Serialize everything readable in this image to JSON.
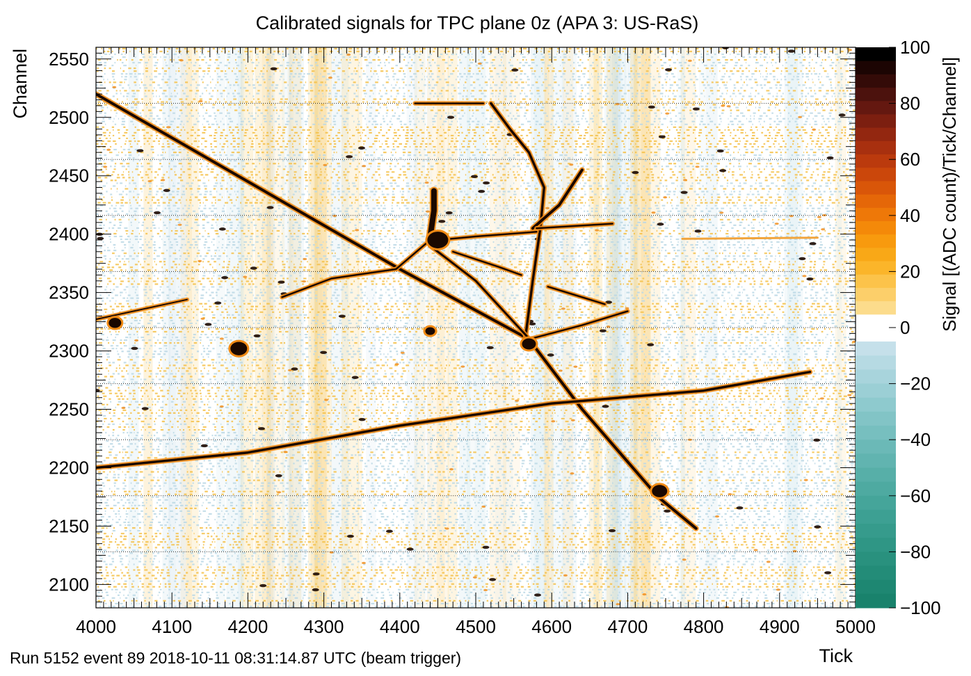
{
  "chart_data": {
    "type": "heatmap",
    "title": "Calibrated signals for TPC plane 0z (APA 3: US-RaS)",
    "xlabel": "Tick",
    "ylabel": "Channel",
    "xlim": [
      4000,
      5000
    ],
    "ylim": [
      2080,
      2560
    ],
    "xticks": [
      4000,
      4100,
      4200,
      4300,
      4400,
      4500,
      4600,
      4700,
      4800,
      4900,
      5000
    ],
    "yticks": [
      2100,
      2150,
      2200,
      2250,
      2300,
      2350,
      2400,
      2450,
      2500,
      2550
    ],
    "colorbar": {
      "label": "Signal [(ADC count)/Tick/Channel]",
      "range": [
        -100,
        100
      ],
      "ticks": [
        -100,
        -80,
        -60,
        -40,
        -20,
        0,
        20,
        40,
        60,
        80,
        100
      ]
    },
    "dotted_channel_lines": [
      2512,
      2464,
      2416,
      2368,
      2320,
      2272,
      2224,
      2176,
      2128
    ],
    "tracks": [
      {
        "points": [
          [
            4000,
            2520
          ],
          [
            4400,
            2370
          ],
          [
            4570,
            2310
          ],
          [
            4640,
            2250
          ],
          [
            4740,
            2175
          ],
          [
            4790,
            2148
          ]
        ],
        "width": 4
      },
      {
        "points": [
          [
            4000,
            2200
          ],
          [
            4200,
            2213
          ],
          [
            4400,
            2236
          ],
          [
            4600,
            2255
          ],
          [
            4800,
            2266
          ],
          [
            4940,
            2282
          ]
        ],
        "width": 3.5
      },
      {
        "points": [
          [
            4565,
            2310
          ],
          [
            4575,
            2360
          ],
          [
            4585,
            2405
          ],
          [
            4590,
            2440
          ],
          [
            4570,
            2470
          ],
          [
            4545,
            2490
          ],
          [
            4520,
            2512
          ]
        ],
        "width": 3.5
      },
      {
        "points": [
          [
            4575,
            2405
          ],
          [
            4610,
            2425
          ],
          [
            4640,
            2455
          ]
        ],
        "width": 4
      },
      {
        "points": [
          [
            4580,
            2405
          ],
          [
            4680,
            2409
          ]
        ],
        "width": 2.5
      },
      {
        "points": [
          [
            4450,
            2395
          ],
          [
            4500,
            2398
          ],
          [
            4580,
            2402
          ]
        ],
        "width": 2.5
      },
      {
        "points": [
          [
            4440,
            2390
          ],
          [
            4500,
            2360
          ],
          [
            4568,
            2312
          ]
        ],
        "width": 3
      },
      {
        "points": [
          [
            4440,
            2395
          ],
          [
            4395,
            2370
          ],
          [
            4310,
            2362
          ],
          [
            4245,
            2346
          ]
        ],
        "width": 2.5
      },
      {
        "points": [
          [
            4440,
            2398
          ],
          [
            4445,
            2420
          ],
          [
            4445,
            2437
          ]
        ],
        "width": 8
      },
      {
        "points": [
          [
            4470,
            2385
          ],
          [
            4530,
            2372
          ],
          [
            4560,
            2365
          ]
        ],
        "width": 2.5
      },
      {
        "points": [
          [
            4570,
            2310
          ],
          [
            4640,
            2322
          ],
          [
            4700,
            2334
          ]
        ],
        "width": 2.5
      },
      {
        "points": [
          [
            4595,
            2355
          ],
          [
            4630,
            2348
          ],
          [
            4670,
            2340
          ]
        ],
        "width": 2.5
      },
      {
        "points": [
          [
            4000,
            2327
          ],
          [
            4120,
            2344
          ]
        ],
        "width": 2
      },
      {
        "points": [
          [
            4420,
            2512
          ],
          [
            4510,
            2512
          ]
        ],
        "width": 2.5
      }
    ],
    "blobs": [
      {
        "x": 4450,
        "y": 2395,
        "r": 1.5
      },
      {
        "x": 4188,
        "y": 2302,
        "r": 1.2
      },
      {
        "x": 4025,
        "y": 2324,
        "r": 0.9
      },
      {
        "x": 4742,
        "y": 2180,
        "r": 1.1
      },
      {
        "x": 4570,
        "y": 2306,
        "r": 1.0
      },
      {
        "x": 4440,
        "y": 2317,
        "r": 0.7
      }
    ],
    "faint_lines": [
      {
        "points": [
          [
            4772,
            2396
          ],
          [
            4950,
            2397
          ]
        ],
        "color": "#f2a43a"
      }
    ]
  },
  "footer": {
    "run_info": "Run 5152 event 89 2018-10-11 08:31:14.87 UTC (beam trigger)"
  },
  "colors": {
    "track": "#1a0800",
    "track_halo": "#f08a14",
    "speckle_positive": "#f5c14a",
    "speckle_negative": "#bcd9e6",
    "dotted_line": "#000000"
  }
}
